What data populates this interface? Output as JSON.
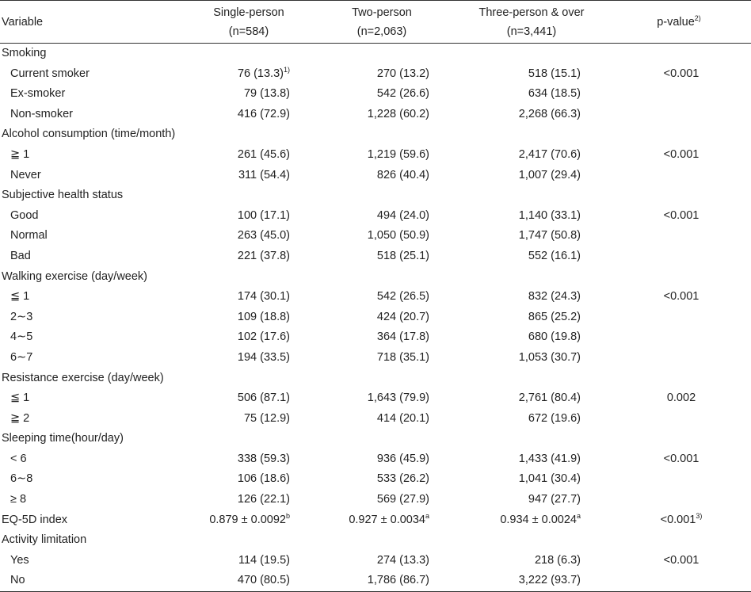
{
  "header": {
    "variable": "Variable",
    "single": "Single-person",
    "single_n": "(n=584)",
    "two": "Two-person",
    "two_n": "(n=2,063)",
    "three": "Three-person & over",
    "three_n": "(n=3,441)",
    "pvalue": "p-value",
    "pvalue_sup": "2)"
  },
  "rows": [
    {
      "type": "section",
      "label": "Smoking"
    },
    {
      "type": "data",
      "label": "Current smoker",
      "c1": "76 (13.3)",
      "c1_sup": "1)",
      "c2": "270 (13.2)",
      "c3": "518 (15.1)",
      "p": "<0.001"
    },
    {
      "type": "data",
      "label": "Ex-smoker",
      "c1": "79 (13.8)",
      "c2": "542 (26.6)",
      "c3": "634 (18.5)",
      "p": ""
    },
    {
      "type": "data",
      "label": "Non-smoker",
      "c1": "416 (72.9)",
      "c2": "1,228 (60.2)",
      "c3": "2,268 (66.3)",
      "p": ""
    },
    {
      "type": "section",
      "label": "Alcohol consumption (time/month)"
    },
    {
      "type": "data",
      "label": "≧ 1",
      "c1": "261 (45.6)",
      "c2": "1,219 (59.6)",
      "c3": "2,417 (70.6)",
      "p": "<0.001"
    },
    {
      "type": "data",
      "label": "Never",
      "c1": "311 (54.4)",
      "c2": "826 (40.4)",
      "c3": "1,007 (29.4)",
      "p": ""
    },
    {
      "type": "section",
      "label": "Subjective health status"
    },
    {
      "type": "data",
      "label": "Good",
      "c1": "100 (17.1)",
      "c2": "494 (24.0)",
      "c3": "1,140 (33.1)",
      "p": "<0.001"
    },
    {
      "type": "data",
      "label": "Normal",
      "c1": "263 (45.0)",
      "c2": "1,050 (50.9)",
      "c3": "1,747 (50.8)",
      "p": ""
    },
    {
      "type": "data",
      "label": "Bad",
      "c1": "221 (37.8)",
      "c2": "518 (25.1)",
      "c3": "552 (16.1)",
      "p": ""
    },
    {
      "type": "section",
      "label": "Walking exercise (day/week)"
    },
    {
      "type": "data",
      "label": "≦ 1",
      "c1": "174 (30.1)",
      "c2": "542 (26.5)",
      "c3": "832 (24.3)",
      "p": "<0.001"
    },
    {
      "type": "data",
      "label": "2∼3",
      "c1": "109 (18.8)",
      "c2": "424 (20.7)",
      "c3": "865 (25.2)",
      "p": ""
    },
    {
      "type": "data",
      "label": "4∼5",
      "c1": "102 (17.6)",
      "c2": "364 (17.8)",
      "c3": "680 (19.8)",
      "p": ""
    },
    {
      "type": "data",
      "label": "6∼7",
      "c1": "194 (33.5)",
      "c2": "718 (35.1)",
      "c3": "1,053 (30.7)",
      "p": ""
    },
    {
      "type": "section",
      "label": "Resistance exercise (day/week)"
    },
    {
      "type": "data",
      "label": "≦ 1",
      "c1": "506 (87.1)",
      "c2": "1,643 (79.9)",
      "c3": "2,761 (80.4)",
      "p": "0.002"
    },
    {
      "type": "data",
      "label": "≧ 2",
      "c1": "75 (12.9)",
      "c2": "414 (20.1)",
      "c3": "672 (19.6)",
      "p": ""
    },
    {
      "type": "section",
      "label": "Sleeping time(hour/day)"
    },
    {
      "type": "data",
      "label": "< 6",
      "c1": "338 (59.3)",
      "c2": "936 (45.9)",
      "c3": "1,433 (41.9)",
      "p": "<0.001"
    },
    {
      "type": "data",
      "label": "6∼8",
      "c1": "106 (18.6)",
      "c2": "533 (26.2)",
      "c3": "1,041 (30.4)",
      "p": ""
    },
    {
      "type": "data",
      "label": "≥ 8",
      "c1": "126 (22.1)",
      "c2": "569 (27.9)",
      "c3": "947 (27.7)",
      "p": ""
    },
    {
      "type": "section",
      "label": "EQ-5D index",
      "c1": "0.879 ± 0.0092",
      "c1_sup": "b",
      "c2": "0.927 ± 0.0034",
      "c2_sup": "a",
      "c3": "0.934 ± 0.0024",
      "c3_sup": "a",
      "p": "<0.001",
      "p_sup": "3)"
    },
    {
      "type": "section",
      "label": "Activity limitation"
    },
    {
      "type": "data",
      "label": "Yes",
      "c1": "114 (19.5)",
      "c2": "274 (13.3)",
      "c3": "218 (6.3)",
      "p": "<0.001"
    },
    {
      "type": "data",
      "label": "No",
      "c1": "470 (80.5)",
      "c2": "1,786 (86.7)",
      "c3": "3,222 (93.7)",
      "p": ""
    }
  ]
}
